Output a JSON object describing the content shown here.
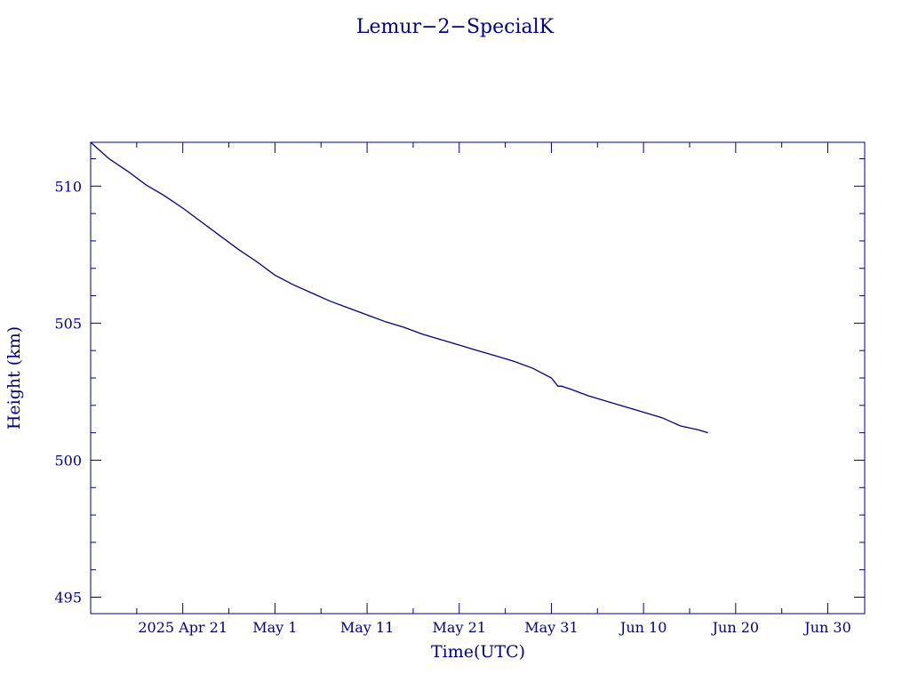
{
  "chart_data": {
    "type": "line",
    "title": "Lemur−2−SpecialK",
    "xlabel": "Time(UTC)",
    "ylabel": "Height (km)",
    "color": "#000080",
    "x_range": [
      "2025-04-11",
      "2025-07-04"
    ],
    "ylim": [
      494.4,
      511.6
    ],
    "x_ticks": [
      {
        "date": "2025-04-21",
        "label": "2025 Apr 21"
      },
      {
        "date": "2025-05-01",
        "label": "May  1"
      },
      {
        "date": "2025-05-11",
        "label": "May 11"
      },
      {
        "date": "2025-05-21",
        "label": "May 21"
      },
      {
        "date": "2025-05-31",
        "label": "May 31"
      },
      {
        "date": "2025-06-10",
        "label": "Jun 10"
      },
      {
        "date": "2025-06-20",
        "label": "Jun 20"
      },
      {
        "date": "2025-06-30",
        "label": "Jun 30"
      }
    ],
    "y_ticks": [
      {
        "value": 495,
        "label": "495"
      },
      {
        "value": 500,
        "label": "500"
      },
      {
        "value": 505,
        "label": "505"
      },
      {
        "value": 510,
        "label": "510"
      }
    ],
    "series": [
      {
        "x": [
          "2025-04-11",
          "2025-04-13",
          "2025-04-15",
          "2025-04-17",
          "2025-04-19",
          "2025-04-21",
          "2025-04-23",
          "2025-04-25",
          "2025-04-27",
          "2025-04-29",
          "2025-05-01",
          "2025-05-03",
          "2025-05-05",
          "2025-05-07",
          "2025-05-09",
          "2025-05-11",
          "2025-05-13",
          "2025-05-15",
          "2025-05-17",
          "2025-05-19",
          "2025-05-21",
          "2025-05-23",
          "2025-05-25",
          "2025-05-27",
          "2025-05-29",
          "2025-05-31",
          "2025-06-01",
          "2025-06-01",
          "2025-06-02",
          "2025-06-04",
          "2025-06-06",
          "2025-06-08",
          "2025-06-10",
          "2025-06-12",
          "2025-06-13",
          "2025-06-14",
          "2025-06-16",
          "2025-06-17"
        ],
        "y": [
          511.6,
          511.0,
          510.55,
          510.05,
          509.65,
          509.2,
          508.7,
          508.2,
          507.7,
          507.25,
          506.75,
          506.4,
          506.1,
          505.8,
          505.55,
          505.3,
          505.05,
          504.85,
          504.6,
          504.4,
          504.2,
          504.0,
          503.8,
          503.6,
          503.35,
          503.0,
          502.7,
          502.7,
          502.6,
          502.35,
          502.15,
          501.95,
          501.75,
          501.55,
          501.4,
          501.25,
          501.1,
          501.0
        ]
      }
    ]
  }
}
